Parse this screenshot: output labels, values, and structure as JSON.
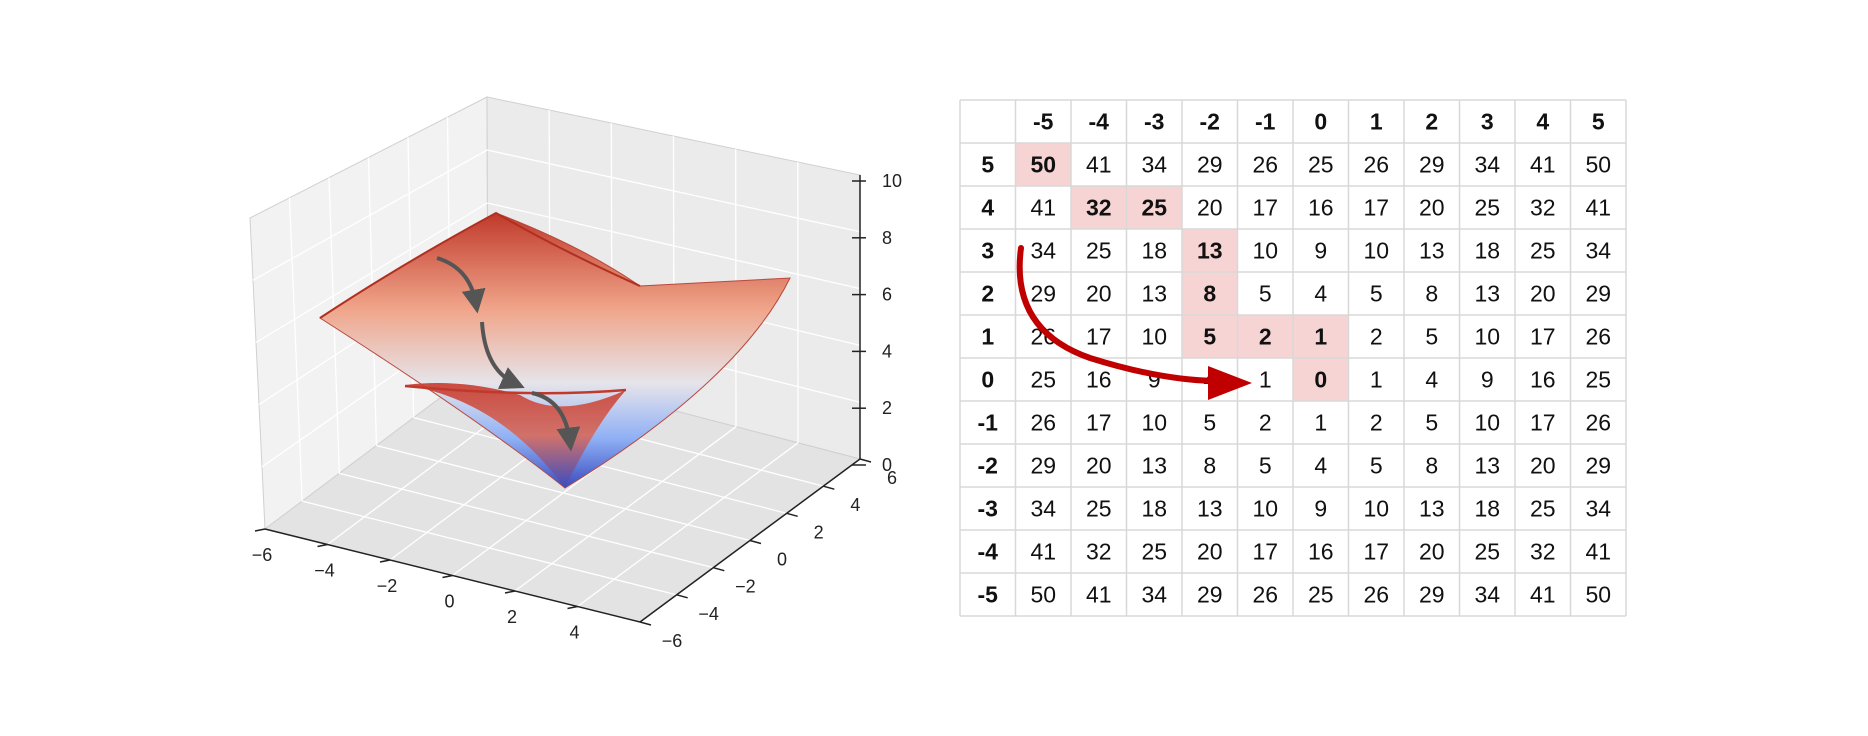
{
  "chart_data": [
    {
      "type": "surface",
      "x_ticks": [
        "−6",
        "−4",
        "−2",
        "0",
        "2",
        "4"
      ],
      "y_ticks": [
        "−6",
        "−4",
        "−2",
        "0",
        "2",
        "4",
        "6"
      ],
      "z_ticks": [
        "0",
        "2",
        "4",
        "6",
        "8",
        "10"
      ],
      "xlim": [
        -6,
        6
      ],
      "ylim": [
        -6,
        6
      ],
      "zlim": [
        0,
        10
      ],
      "grid": true,
      "colormap_colors": [
        "#3b4cc0",
        "#dddddd",
        "#b40426"
      ],
      "arrow_color": "#555555"
    },
    {
      "type": "table",
      "column_headers": [
        "-5",
        "-4",
        "-3",
        "-2",
        "-1",
        "0",
        "1",
        "2",
        "3",
        "4",
        "5"
      ],
      "row_headers": [
        "5",
        "4",
        "3",
        "2",
        "1",
        "0",
        "-1",
        "-2",
        "-3",
        "-4",
        "-5"
      ],
      "rows": [
        [
          "50",
          "41",
          "34",
          "29",
          "26",
          "25",
          "26",
          "29",
          "34",
          "41",
          "50"
        ],
        [
          "41",
          "32",
          "25",
          "20",
          "17",
          "16",
          "17",
          "20",
          "25",
          "32",
          "41"
        ],
        [
          "34",
          "25",
          "18",
          "13",
          "10",
          "9",
          "10",
          "13",
          "18",
          "25",
          "34"
        ],
        [
          "29",
          "20",
          "13",
          "8",
          "5",
          "4",
          "5",
          "8",
          "13",
          "20",
          "29"
        ],
        [
          "26",
          "17",
          "10",
          "5",
          "2",
          "1",
          "2",
          "5",
          "10",
          "17",
          "26"
        ],
        [
          "25",
          "16",
          "9",
          "4",
          "1",
          "0",
          "1",
          "4",
          "9",
          "16",
          "25"
        ],
        [
          "26",
          "17",
          "10",
          "5",
          "2",
          "1",
          "2",
          "5",
          "10",
          "17",
          "26"
        ],
        [
          "29",
          "20",
          "13",
          "8",
          "5",
          "4",
          "5",
          "8",
          "13",
          "20",
          "29"
        ],
        [
          "34",
          "25",
          "18",
          "13",
          "10",
          "9",
          "10",
          "13",
          "18",
          "25",
          "34"
        ],
        [
          "41",
          "32",
          "25",
          "20",
          "17",
          "16",
          "17",
          "20",
          "25",
          "32",
          "41"
        ],
        [
          "50",
          "41",
          "34",
          "29",
          "26",
          "25",
          "26",
          "29",
          "34",
          "41",
          "50"
        ]
      ],
      "highlighted_cells": [
        [
          0,
          0
        ],
        [
          1,
          1
        ],
        [
          1,
          2
        ],
        [
          2,
          3
        ],
        [
          3,
          3
        ],
        [
          4,
          3
        ],
        [
          4,
          4
        ],
        [
          4,
          5
        ],
        [
          5,
          5
        ]
      ],
      "highlight_color": "#f7d4d4",
      "arrow_color": "#c00000",
      "grid_color": "#d8d8d8"
    }
  ]
}
